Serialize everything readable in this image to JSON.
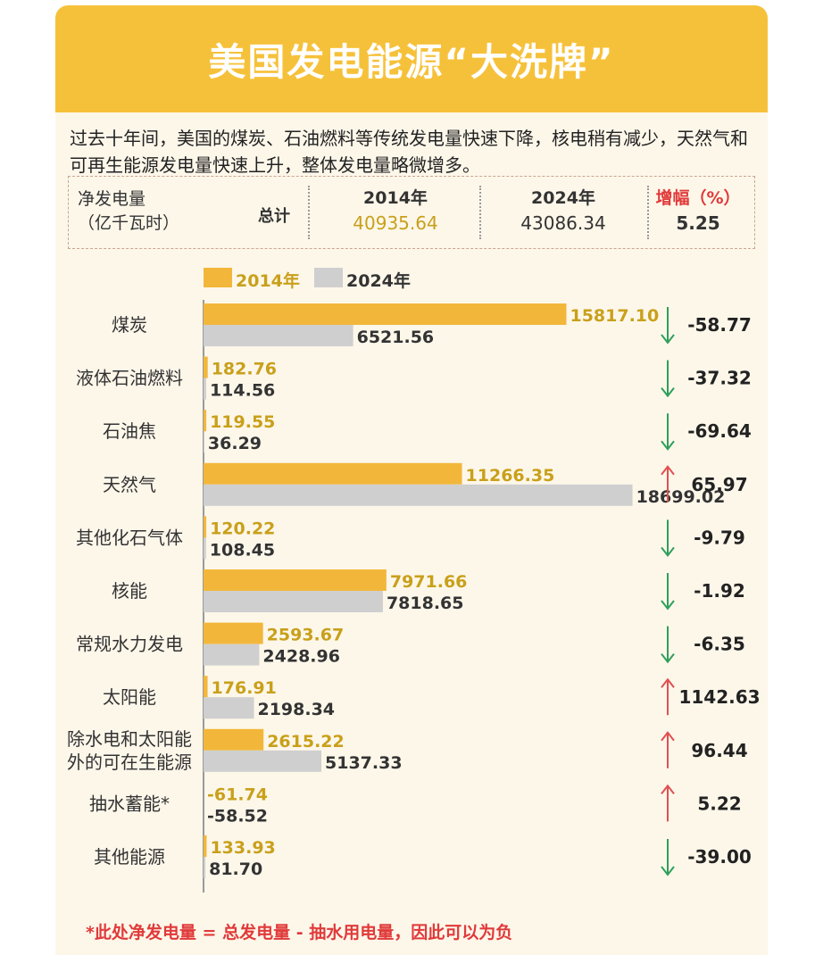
{
  "title": "美国发电能源“大洗牌”",
  "intro": "过去十年间，美国的煤炭、石油燃料等传统发电量快速下降，核电稍有减少，天然气和可再生能源发电量快速上升，整体发电量略微增多。",
  "summary": {
    "label_line1": "净发电量",
    "label_line2": "（亿千瓦时）",
    "total_label": "总计",
    "col_2014_head": "2014年",
    "col_2014_value": "40935.64",
    "col_2024_head": "2024年",
    "col_2024_value": "43086.34",
    "col_change_head": "增幅（%）",
    "col_change_value": "5.25"
  },
  "legend": {
    "a": "2014年",
    "b": "2024年"
  },
  "colors": {
    "y2014": "#f2b73a",
    "y2024": "#cfcfcf",
    "up": "#e05050",
    "down": "#2f9f5a",
    "label2014": "#c9a01a",
    "header": "#f6c13a"
  },
  "chart_data": {
    "type": "bar",
    "orientation": "horizontal",
    "categories": [
      "煤炭",
      "液体石油燃料",
      "石油焦",
      "天然气",
      "其他化石气体",
      "核能",
      "常规水力发电",
      "太阳能",
      "除水电和太阳能外的可在生能源",
      "抽水蓄能*",
      "其他能源"
    ],
    "category_lines": [
      [
        "煤炭"
      ],
      [
        "液体石油燃料"
      ],
      [
        "石油焦"
      ],
      [
        "天然气"
      ],
      [
        "其他化石气体"
      ],
      [
        "核能"
      ],
      [
        "常规水力发电"
      ],
      [
        "太阳能"
      ],
      [
        "除水电和太阳能",
        "外的可在生能源"
      ],
      [
        "抽水蓄能*"
      ],
      [
        "其他能源"
      ]
    ],
    "series": [
      {
        "name": "2014年",
        "values": [
          15817.1,
          182.76,
          119.55,
          11266.35,
          120.22,
          7971.66,
          2593.67,
          176.91,
          2615.22,
          -61.74,
          133.93
        ],
        "labels": [
          "15817.10",
          "182.76",
          "119.55",
          "11266.35",
          "120.22",
          "7971.66",
          "2593.67",
          "176.91",
          "2615.22",
          "-61.74",
          "133.93"
        ]
      },
      {
        "name": "2024年",
        "values": [
          6521.56,
          114.56,
          36.29,
          18699.02,
          108.45,
          7818.65,
          2428.96,
          2198.34,
          5137.33,
          -58.52,
          81.7
        ],
        "labels": [
          "6521.56",
          "114.56",
          "36.29",
          "18699.02",
          "108.45",
          "7818.65",
          "2428.96",
          "2198.34",
          "5137.33",
          "-58.52",
          "81.70"
        ]
      }
    ],
    "change_percent": [
      "-58.77",
      "-37.32",
      "-69.64",
      "65.97",
      "-9.79",
      "-1.92",
      "-6.35",
      "1142.63",
      "96.44",
      "5.22",
      "-39.00"
    ],
    "change_direction": [
      "down",
      "down",
      "down",
      "up",
      "down",
      "down",
      "down",
      "up",
      "up",
      "up",
      "down"
    ],
    "xlim": [
      0,
      19000
    ]
  },
  "footnote": "*此处净发电量 = 总发电量 - 抽水用电量，因此可以为负"
}
